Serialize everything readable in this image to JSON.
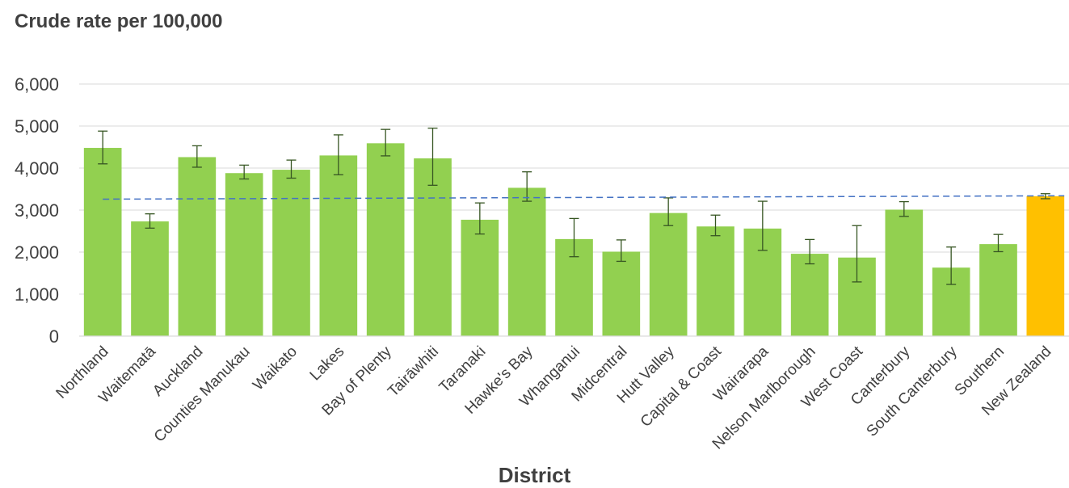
{
  "chart_data": {
    "type": "bar",
    "ylabel": "Crude rate per 100,000",
    "xlabel": "District",
    "ylim": [
      0,
      6000
    ],
    "yticks": [
      "0",
      "1,000",
      "2,000",
      "3,000",
      "4,000",
      "5,000",
      "6,000"
    ],
    "categories": [
      "Northland",
      "Waitematā",
      "Auckland",
      "Counties Manukau",
      "Waikato",
      "Lakes",
      "Bay of Plenty",
      "Tairāwhiti",
      "Taranaki",
      "Hawke's Bay",
      "Whanganui",
      "Midcentral",
      "Hutt Valley",
      "Capital & Coast",
      "Wairarapa",
      "Nelson Marlborough",
      "West Coast",
      "Canterbury",
      "South Canterbury",
      "Southern",
      "New Zealand"
    ],
    "values": [
      4480,
      2730,
      4260,
      3880,
      3960,
      4300,
      4590,
      4230,
      2770,
      3530,
      2310,
      2010,
      2930,
      2610,
      2560,
      1960,
      1870,
      3010,
      1630,
      2190,
      3330
    ],
    "error_low": [
      4100,
      2570,
      4020,
      3740,
      3760,
      3840,
      4290,
      3590,
      2430,
      3210,
      1890,
      1780,
      2630,
      2390,
      2040,
      1720,
      1290,
      2850,
      1230,
      2010,
      3270
    ],
    "error_high": [
      4880,
      2910,
      4530,
      4070,
      4190,
      4790,
      4920,
      4950,
      3170,
      3910,
      2800,
      2290,
      3290,
      2880,
      3210,
      2300,
      2630,
      3200,
      2120,
      2420,
      3390
    ],
    "trendline": {
      "start": 3260,
      "end": 3340
    },
    "grid": true,
    "legend": "none",
    "colors": {
      "bar": "#92d050",
      "highlight": "#ffc000",
      "error": "#375623",
      "trend": "#4472c4",
      "grid": "#d9d9d9"
    },
    "highlight_index": 20
  }
}
